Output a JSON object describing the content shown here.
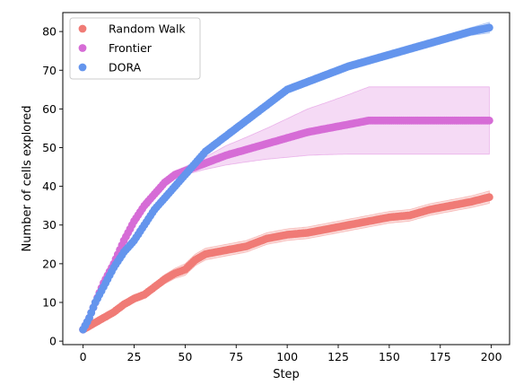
{
  "chart_data": {
    "type": "scatter",
    "xlabel": "Step",
    "ylabel": "Number of cells explored",
    "xlim": [
      -9.95,
      208.95
    ],
    "ylim": [
      -0.9,
      84.9
    ],
    "xticks": [
      0,
      25,
      50,
      75,
      100,
      125,
      150,
      175,
      200
    ],
    "yticks": [
      0,
      10,
      20,
      30,
      40,
      50,
      60,
      70,
      80
    ],
    "grid": false,
    "legend_position": "top-left",
    "series": [
      {
        "name": "Random Walk",
        "color": "#f07b76",
        "band_color": "#f07b76",
        "x": [
          0,
          5,
          10,
          15,
          20,
          25,
          30,
          35,
          40,
          45,
          50,
          55,
          60,
          70,
          80,
          90,
          100,
          110,
          120,
          130,
          140,
          150,
          160,
          170,
          180,
          190,
          199
        ],
        "y": [
          3,
          4.5,
          6,
          7.5,
          9.5,
          11,
          12,
          14,
          16,
          17.5,
          18.5,
          21,
          22.5,
          23.5,
          24.5,
          26.5,
          27.5,
          28,
          29,
          30,
          31,
          32,
          32.5,
          34,
          35,
          36,
          37.2
        ],
        "lower": [
          3,
          4,
          5.4,
          6.8,
          8.6,
          10,
          11,
          13,
          14.8,
          16.2,
          17,
          19.5,
          21,
          22,
          23,
          25,
          26,
          26.5,
          27.5,
          28.5,
          29.5,
          30.5,
          31,
          32.5,
          33.5,
          34.5,
          35.6
        ],
        "upper": [
          3,
          5,
          6.6,
          8.2,
          10.4,
          12,
          13,
          15,
          17.2,
          18.8,
          20,
          22.5,
          24,
          25,
          26,
          28,
          29,
          29.5,
          30.5,
          31.5,
          32.5,
          33.5,
          34,
          35.5,
          36.5,
          37.5,
          38.8
        ]
      },
      {
        "name": "Frontier",
        "color": "#d66cd6",
        "band_color": "#d66cd6",
        "x": [
          0,
          3,
          6,
          10,
          15,
          20,
          25,
          30,
          35,
          40,
          45,
          50,
          55,
          60,
          70,
          80,
          90,
          100,
          110,
          120,
          130,
          140,
          150,
          160,
          170,
          180,
          190,
          199
        ],
        "y": [
          3,
          6,
          10,
          15,
          20,
          26,
          31,
          35,
          38,
          41,
          43,
          44,
          45,
          46,
          48,
          49.5,
          51,
          52.5,
          54,
          55,
          56,
          57,
          57,
          57,
          57,
          57,
          57,
          57
        ],
        "lower": [
          3,
          6,
          10,
          15,
          20,
          25.7,
          30.5,
          34.4,
          37.2,
          40.1,
          42,
          42.9,
          43.7,
          44.4,
          45.5,
          46.3,
          47,
          47.5,
          48,
          48.2,
          48.3,
          48.3,
          48.3,
          48.3,
          48.3,
          48.3,
          48.3,
          48.3
        ],
        "upper": [
          3,
          6,
          10,
          15,
          20,
          26.3,
          31.5,
          35.6,
          38.8,
          41.9,
          44,
          45.1,
          46.3,
          47.6,
          50.5,
          52.7,
          55,
          57.5,
          60,
          61.8,
          63.7,
          65.7,
          65.7,
          65.7,
          65.7,
          65.7,
          65.7,
          65.7
        ]
      },
      {
        "name": "DORA",
        "color": "#6495ed",
        "band_color": "#6495ed",
        "x": [
          0,
          3,
          6,
          10,
          15,
          20,
          25,
          30,
          35,
          40,
          45,
          50,
          55,
          60,
          65,
          70,
          75,
          80,
          85,
          90,
          95,
          100,
          110,
          120,
          130,
          140,
          150,
          160,
          170,
          180,
          190,
          199
        ],
        "y": [
          3,
          6,
          10,
          14,
          19,
          23,
          26,
          30,
          34,
          37,
          40,
          43,
          46,
          49,
          51,
          53,
          55,
          57,
          59,
          61,
          63,
          65,
          67,
          69,
          71,
          72.5,
          74,
          75.5,
          77,
          78.5,
          80,
          81
        ],
        "lower": [
          3,
          6,
          10,
          14,
          19,
          23,
          26,
          30,
          34,
          37,
          40,
          42.5,
          45.5,
          48,
          50,
          52,
          54,
          56,
          58,
          60,
          62,
          64,
          66,
          68,
          70,
          71.5,
          73,
          74.5,
          76,
          77.5,
          79,
          79.6
        ],
        "upper": [
          3,
          6,
          10,
          14,
          19,
          23,
          26,
          30,
          34,
          37,
          40,
          43.5,
          46.5,
          50,
          52,
          54,
          56,
          58,
          60,
          62,
          64,
          66,
          68,
          70,
          72,
          73.5,
          75,
          76.5,
          78,
          79.5,
          81,
          82.4
        ]
      }
    ]
  }
}
